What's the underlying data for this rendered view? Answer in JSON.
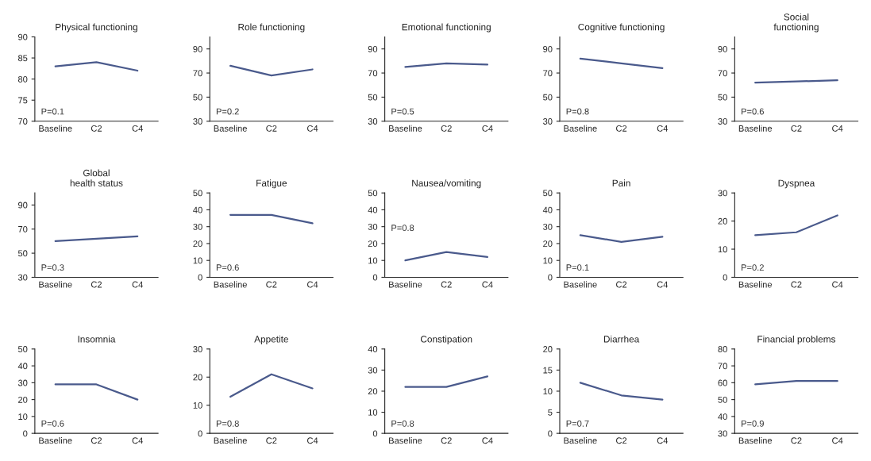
{
  "chart_data": [
    {
      "type": "line",
      "title": "Physical functioning",
      "categories": [
        "Baseline",
        "C2",
        "C4"
      ],
      "series": [
        {
          "color": "#4a5a8c",
          "values": [
            83,
            84,
            82
          ]
        }
      ],
      "ylim": [
        70,
        90
      ],
      "yticks": [
        70,
        75,
        80,
        85,
        90
      ],
      "annotations": [
        "P=0.1"
      ],
      "grid": false,
      "legend": false
    },
    {
      "type": "line",
      "title": "Role functioning",
      "categories": [
        "Baseline",
        "C2",
        "C4"
      ],
      "series": [
        {
          "color": "#4a5a8c",
          "values": [
            76,
            68,
            73
          ]
        }
      ],
      "ylim": [
        30,
        100
      ],
      "yticks": [
        30,
        50,
        70,
        90
      ],
      "annotations": [
        "P=0.2"
      ],
      "grid": false,
      "legend": false
    },
    {
      "type": "line",
      "title": "Emotional functioning",
      "categories": [
        "Baseline",
        "C2",
        "C4"
      ],
      "series": [
        {
          "color": "#4a5a8c",
          "values": [
            75,
            78,
            77
          ]
        }
      ],
      "ylim": [
        30,
        100
      ],
      "yticks": [
        30,
        50,
        70,
        90
      ],
      "annotations": [
        "P=0.5"
      ],
      "grid": false,
      "legend": false
    },
    {
      "type": "line",
      "title": "Cognitive functioning",
      "categories": [
        "Baseline",
        "C2",
        "C4"
      ],
      "series": [
        {
          "color": "#4a5a8c",
          "values": [
            82,
            78,
            74
          ]
        }
      ],
      "ylim": [
        30,
        100
      ],
      "yticks": [
        30,
        50,
        70,
        90
      ],
      "annotations": [
        "P=0.8"
      ],
      "grid": false,
      "legend": false
    },
    {
      "type": "line",
      "title": "Social\nfunctioning",
      "categories": [
        "Baseline",
        "C2",
        "C4"
      ],
      "series": [
        {
          "color": "#4a5a8c",
          "values": [
            62,
            63,
            64
          ]
        }
      ],
      "ylim": [
        30,
        100
      ],
      "yticks": [
        30,
        50,
        70,
        90
      ],
      "annotations": [
        "P=0.6"
      ],
      "grid": false,
      "legend": false
    },
    {
      "type": "line",
      "title": "Global\nhealth status",
      "categories": [
        "Baseline",
        "C2",
        "C4"
      ],
      "series": [
        {
          "color": "#4a5a8c",
          "values": [
            60,
            62,
            64
          ]
        }
      ],
      "ylim": [
        30,
        100
      ],
      "yticks": [
        30,
        50,
        70,
        90
      ],
      "annotations": [
        "P=0.3"
      ],
      "grid": false,
      "legend": false
    },
    {
      "type": "line",
      "title": "Fatigue",
      "categories": [
        "Baseline",
        "C2",
        "C4"
      ],
      "series": [
        {
          "color": "#4a5a8c",
          "values": [
            37,
            37,
            32
          ]
        }
      ],
      "ylim": [
        0,
        50
      ],
      "yticks": [
        0,
        10,
        20,
        30,
        40,
        50
      ],
      "annotations": [
        "P=0.6"
      ],
      "grid": false,
      "legend": false
    },
    {
      "type": "line",
      "title": "Nausea/vomiting",
      "categories": [
        "Baseline",
        "C2",
        "C4"
      ],
      "series": [
        {
          "color": "#4a5a8c",
          "values": [
            10,
            15,
            12
          ]
        }
      ],
      "ylim": [
        0,
        50
      ],
      "yticks": [
        0,
        10,
        20,
        30,
        40,
        50
      ],
      "annotations": [
        "P=0.8"
      ],
      "grid": false,
      "legend": false
    },
    {
      "type": "line",
      "title": "Pain",
      "categories": [
        "Baseline",
        "C2",
        "C4"
      ],
      "series": [
        {
          "color": "#4a5a8c",
          "values": [
            25,
            21,
            24
          ]
        }
      ],
      "ylim": [
        0,
        50
      ],
      "yticks": [
        0,
        10,
        20,
        30,
        40,
        50
      ],
      "annotations": [
        "P=0.1"
      ],
      "grid": false,
      "legend": false
    },
    {
      "type": "line",
      "title": "Dyspnea",
      "categories": [
        "Baseline",
        "C2",
        "C4"
      ],
      "series": [
        {
          "color": "#4a5a8c",
          "values": [
            15,
            16,
            22
          ]
        }
      ],
      "ylim": [
        0,
        30
      ],
      "yticks": [
        0,
        10,
        20,
        30
      ],
      "annotations": [
        "P=0.2"
      ],
      "grid": false,
      "legend": false
    },
    {
      "type": "line",
      "title": "Insomnia",
      "categories": [
        "Baseline",
        "C2",
        "C4"
      ],
      "series": [
        {
          "color": "#4a5a8c",
          "values": [
            29,
            29,
            20
          ]
        }
      ],
      "ylim": [
        0,
        50
      ],
      "yticks": [
        0,
        10,
        20,
        30,
        40,
        50
      ],
      "annotations": [
        "P=0.6"
      ],
      "grid": false,
      "legend": false
    },
    {
      "type": "line",
      "title": "Appetite",
      "categories": [
        "Baseline",
        "C2",
        "C4"
      ],
      "series": [
        {
          "color": "#4a5a8c",
          "values": [
            13,
            21,
            16
          ]
        }
      ],
      "ylim": [
        0,
        30
      ],
      "yticks": [
        0,
        10,
        20,
        30
      ],
      "annotations": [
        "P=0.8"
      ],
      "grid": false,
      "legend": false
    },
    {
      "type": "line",
      "title": "Constipation",
      "categories": [
        "Baseline",
        "C2",
        "C4"
      ],
      "series": [
        {
          "color": "#4a5a8c",
          "values": [
            22,
            22,
            27
          ]
        }
      ],
      "ylim": [
        0,
        40
      ],
      "yticks": [
        0,
        10,
        20,
        30,
        40
      ],
      "annotations": [
        "P=0.8"
      ],
      "grid": false,
      "legend": false
    },
    {
      "type": "line",
      "title": "Diarrhea",
      "categories": [
        "Baseline",
        "C2",
        "C4"
      ],
      "series": [
        {
          "color": "#4a5a8c",
          "values": [
            12,
            9,
            8
          ]
        }
      ],
      "ylim": [
        0,
        20
      ],
      "yticks": [
        0,
        5,
        10,
        15,
        20
      ],
      "annotations": [
        "P=0.7"
      ],
      "grid": false,
      "legend": false
    },
    {
      "type": "line",
      "title": "Financial problems",
      "categories": [
        "Baseline",
        "C2",
        "C4"
      ],
      "series": [
        {
          "color": "#4a5a8c",
          "values": [
            59,
            61,
            61
          ]
        }
      ],
      "ylim": [
        30,
        80
      ],
      "yticks": [
        30,
        40,
        50,
        60,
        70,
        80
      ],
      "annotations": [
        "P=0.9"
      ],
      "grid": false,
      "legend": false
    }
  ]
}
